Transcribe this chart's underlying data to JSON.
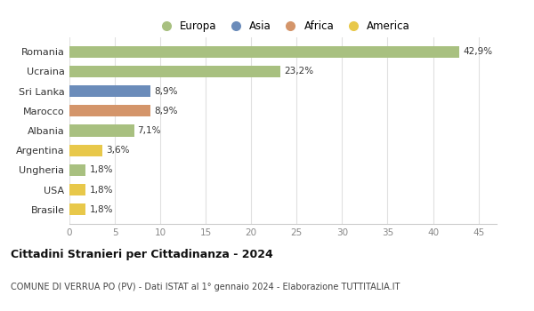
{
  "categories": [
    "Romania",
    "Ucraina",
    "Sri Lanka",
    "Marocco",
    "Albania",
    "Argentina",
    "Ungheria",
    "USA",
    "Brasile"
  ],
  "values": [
    42.9,
    23.2,
    8.9,
    8.9,
    7.1,
    3.6,
    1.8,
    1.8,
    1.8
  ],
  "labels": [
    "42,9%",
    "23,2%",
    "8,9%",
    "8,9%",
    "7,1%",
    "3,6%",
    "1,8%",
    "1,8%",
    "1,8%"
  ],
  "colors": [
    "#a8c080",
    "#a8c080",
    "#6b8cba",
    "#d4956a",
    "#a8c080",
    "#e8c84a",
    "#a8c080",
    "#e8c84a",
    "#e8c84a"
  ],
  "legend_labels": [
    "Europa",
    "Asia",
    "Africa",
    "America"
  ],
  "legend_colors": [
    "#a8c080",
    "#6b8cba",
    "#d4956a",
    "#e8c84a"
  ],
  "title": "Cittadini Stranieri per Cittadinanza - 2024",
  "subtitle": "COMUNE DI VERRUA PO (PV) - Dati ISTAT al 1° gennaio 2024 - Elaborazione TUTTITALIA.IT",
  "xlim": [
    0,
    47
  ],
  "xticks": [
    0,
    5,
    10,
    15,
    20,
    25,
    30,
    35,
    40,
    45
  ],
  "background_color": "#ffffff",
  "grid_color": "#e0e0e0",
  "bar_height": 0.6
}
